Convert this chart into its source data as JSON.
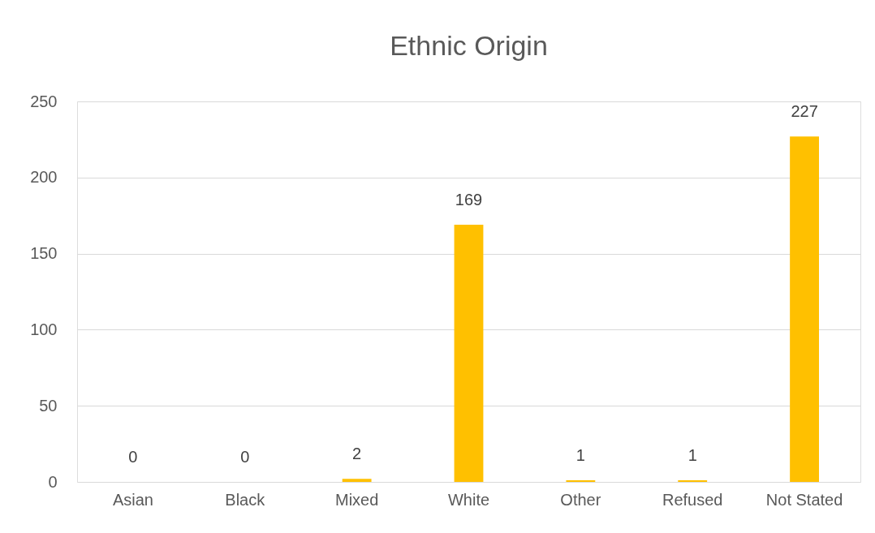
{
  "chart_data": {
    "type": "bar",
    "title": "Ethnic Origin",
    "categories": [
      "Asian",
      "Black",
      "Mixed",
      "White",
      "Other",
      "Refused",
      "Not Stated"
    ],
    "values": [
      0,
      0,
      2,
      169,
      1,
      1,
      227
    ],
    "color": "#ffc000",
    "ylim": [
      0,
      250
    ],
    "yticks": [
      0,
      50,
      100,
      150,
      200,
      250
    ],
    "grid": "y",
    "data_labels": true
  }
}
